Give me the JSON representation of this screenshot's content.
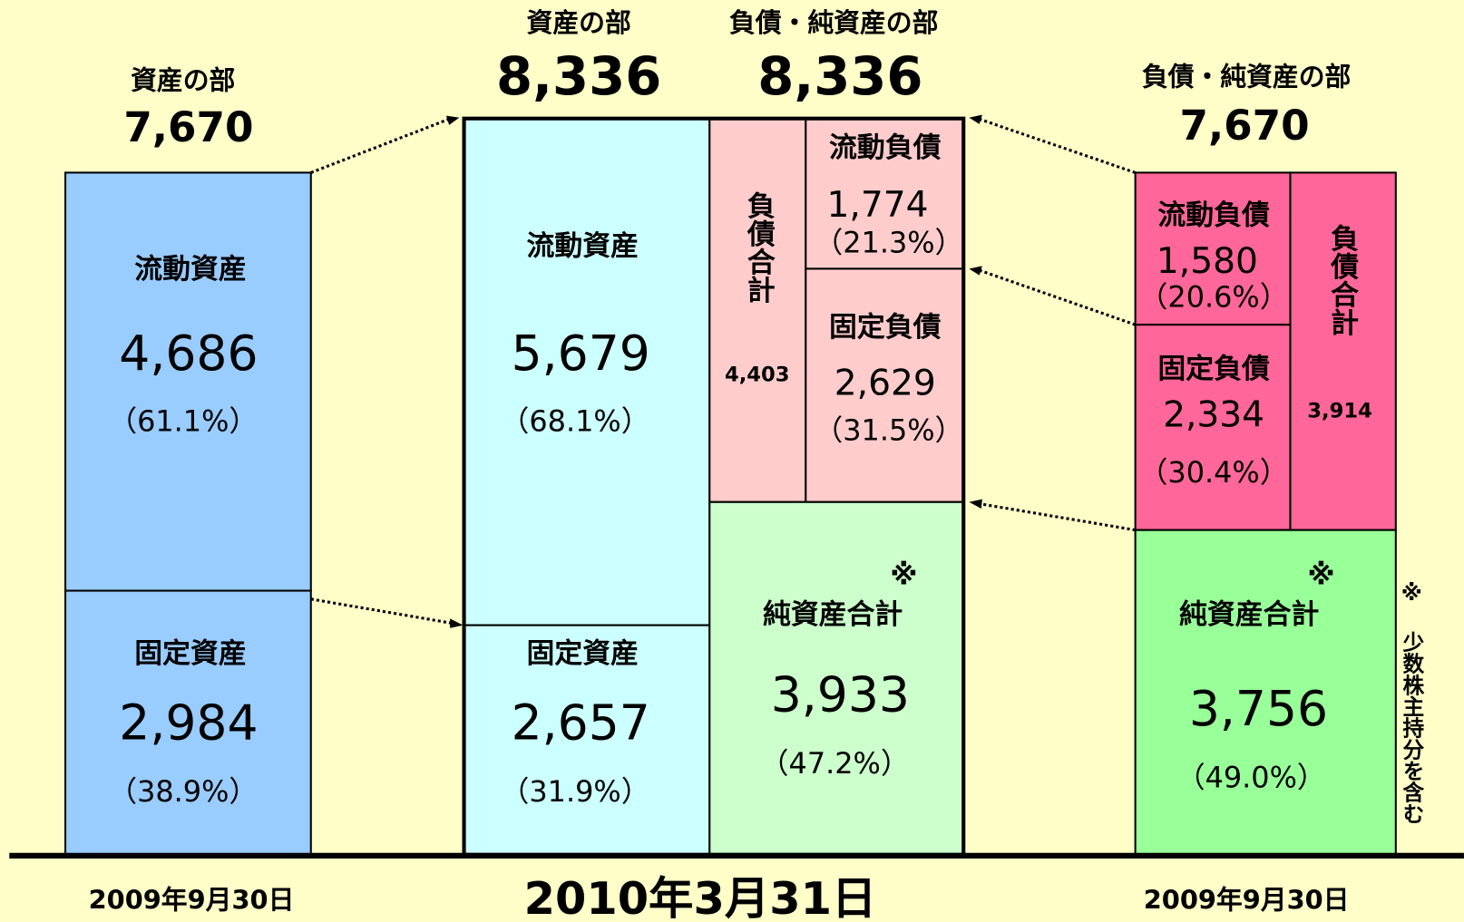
{
  "left": {
    "header": "資産の部",
    "total": "7,670",
    "current": {
      "label": "流動資産",
      "value": "4,686",
      "pct": "（61.1%）"
    },
    "fixed": {
      "label": "固定資産",
      "value": "2,984",
      "pct": "（38.9%）"
    },
    "date": "2009年9月30日"
  },
  "middle": {
    "assets": {
      "header": "資産の部",
      "total": "8,336",
      "current": {
        "label": "流動資産",
        "value": "5,679",
        "pct": "（68.1%）"
      },
      "fixed": {
        "label": "固定資産",
        "value": "2,657",
        "pct": "（31.9%）"
      }
    },
    "liabilities": {
      "header": "負債・純資産の部",
      "total": "8,336",
      "total_liabilities": {
        "label": "負債合計",
        "value": "4,403"
      },
      "current": {
        "label": "流動負債",
        "value": "1,774",
        "pct": "（21.3%）"
      },
      "fixed": {
        "label": "固定負債",
        "value": "2,629",
        "pct": "（31.5%）"
      },
      "net_assets": {
        "mark": "※",
        "label": "純資産合計",
        "value": "3,933",
        "pct": "（47.2%）"
      }
    },
    "date": "2010年3月31日"
  },
  "right": {
    "header": "負債・純資産の部",
    "total": "7,670",
    "current": {
      "label": "流動負債",
      "value": "1,580",
      "pct": "（20.6%）"
    },
    "fixed": {
      "label": "固定負債",
      "value": "2,334",
      "pct": "（30.4%）"
    },
    "total_liabilities": {
      "label": "負債合計",
      "value": "3,914"
    },
    "net_assets": {
      "mark": "※",
      "label": "純資産合計",
      "value": "3,756",
      "pct": "（49.0%）"
    },
    "note": "※ 少数株主持分を含む",
    "date": "2009年9月30日"
  }
}
